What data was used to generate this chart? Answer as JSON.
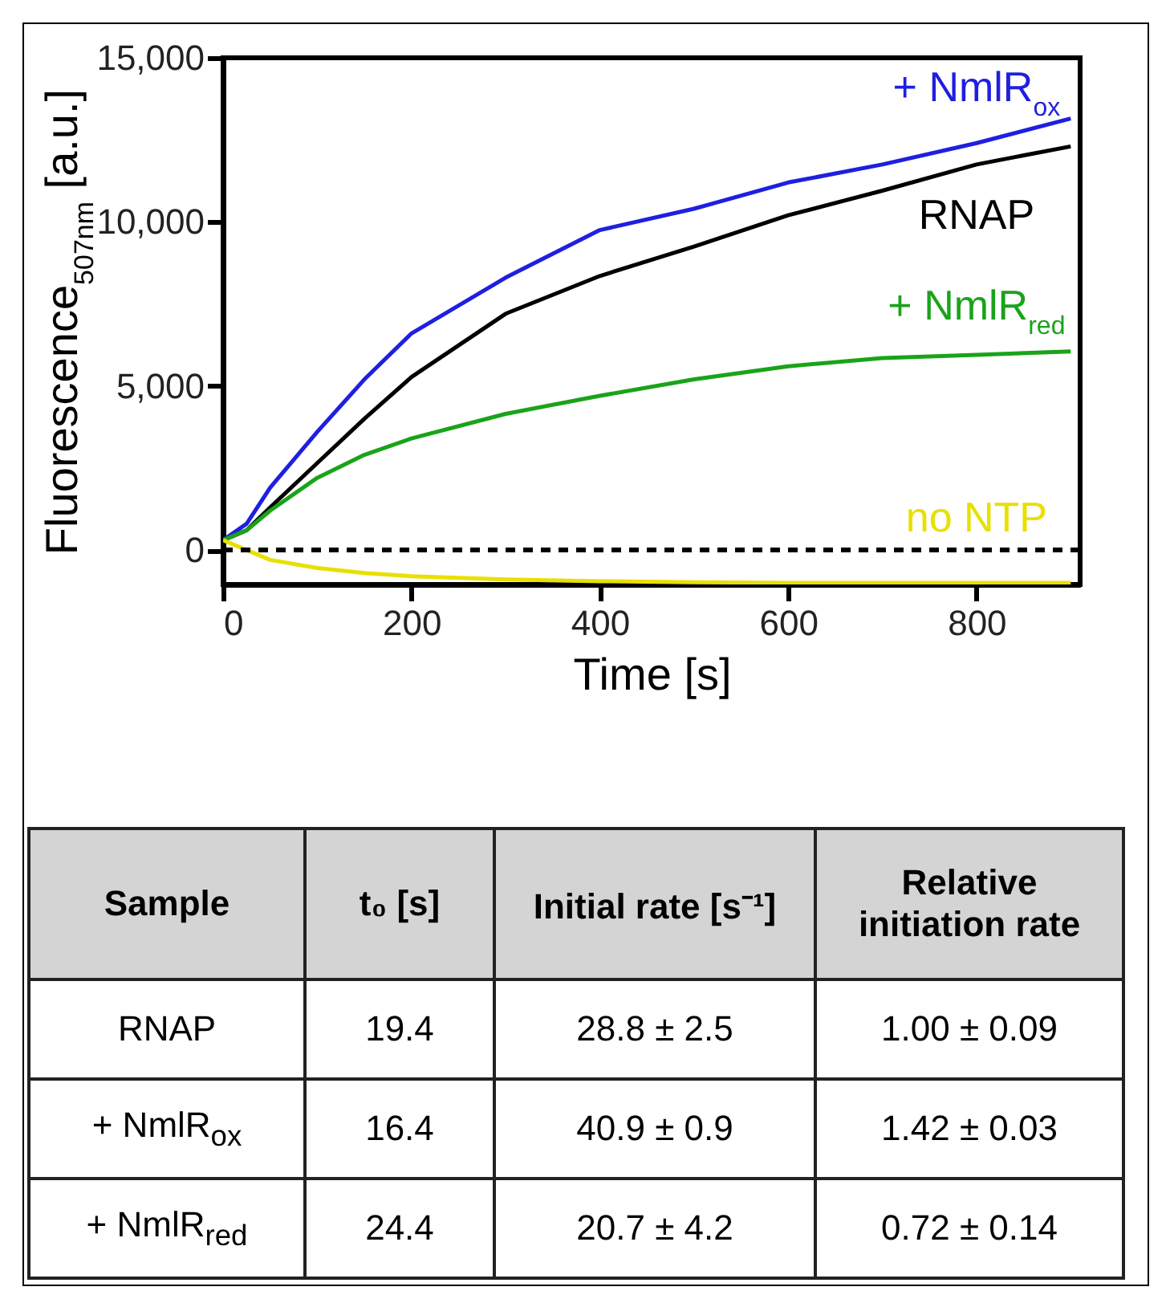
{
  "chart_data": [
    {
      "type": "line",
      "xlabel": "Time [s]",
      "ylabel": "Fluorescence$_{507nm}$ [a.u.]",
      "x": [
        0,
        25,
        50,
        100,
        150,
        200,
        300,
        400,
        500,
        600,
        700,
        800,
        900
      ],
      "series": [
        {
          "name": "RNAP",
          "color": "#000000",
          "values": [
            300,
            600,
            1300,
            2650,
            4000,
            5270,
            7200,
            8350,
            9250,
            10200,
            10950,
            11750,
            12300
          ]
        },
        {
          "name": "+ NmlR$_{ox}$",
          "color": "#1f1fe0",
          "values": [
            300,
            800,
            1900,
            3600,
            5200,
            6600,
            8300,
            9750,
            10400,
            11200,
            11750,
            12400,
            13150
          ]
        },
        {
          "name": "+ NmlR$_{red}$",
          "color": "#1aa31a",
          "values": [
            300,
            600,
            1200,
            2200,
            2900,
            3400,
            4150,
            4700,
            5200,
            5600,
            5850,
            5950,
            6050
          ]
        },
        {
          "name": "no NTP",
          "color": "#e8e000",
          "values": [
            300,
            0,
            -300,
            -550,
            -700,
            -800,
            -900,
            -950,
            -980,
            -1000,
            -1000,
            -1000,
            -1000
          ]
        }
      ],
      "xlim": [
        0,
        910
      ],
      "ylim": [
        -1050,
        15000
      ],
      "xticks": [
        0,
        200,
        400,
        600,
        800
      ],
      "yticks": [
        {
          "value": 0,
          "label": "0"
        },
        {
          "value": 5000,
          "label": "5,000"
        },
        {
          "value": 10000,
          "label": "10,000"
        },
        {
          "value": 15000,
          "label": "15,000"
        }
      ],
      "ref_lines": [
        {
          "axis": "y",
          "value": 0,
          "color": "#000000",
          "line_style": "dashed"
        }
      ],
      "grid": false,
      "legend": false
    },
    {
      "type": "other",
      "annotations": [
        "Sample",
        "t₀ [s]",
        "Initial rate [s⁻¹]",
        "Relative initiation rate",
        "RNAP",
        "19.4",
        "28.8 ± 2.5",
        "1.00 ± 0.09",
        "+ NmlR$_{ox}$",
        "16.4",
        "40.9 ± 0.9",
        "1.42 ± 0.03",
        "+ NmlR$_{red}$",
        "24.4",
        "20.7 ± 4.2",
        "0.72 ± 0.14"
      ]
    }
  ]
}
